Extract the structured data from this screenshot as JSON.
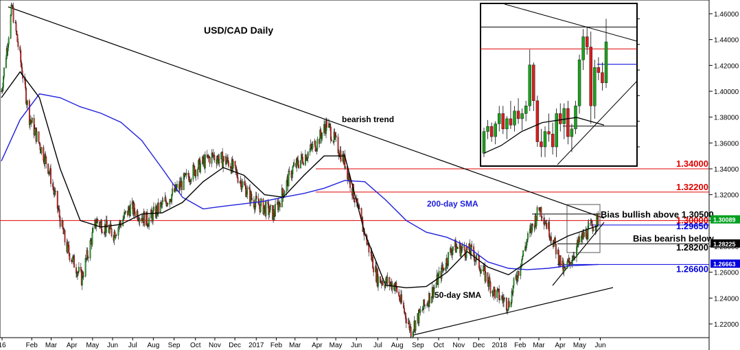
{
  "chart_data": {
    "type": "candlestick",
    "title": "USD/CAD Daily",
    "ylim": [
      1.2,
      1.47
    ],
    "x_months": [
      "16",
      "Feb",
      "Mar",
      "Apr",
      "May",
      "Jun",
      "Jul",
      "Aug",
      "Sep",
      "Oct",
      "Nov",
      "Dec",
      "2017",
      "Feb",
      "Mar",
      "Apr",
      "May",
      "Jun",
      "Jul",
      "Aug",
      "Sep",
      "Oct",
      "Nov",
      "Dec",
      "2018",
      "Feb",
      "Mar",
      "Apr",
      "May",
      "Jun"
    ],
    "y_ticks": [
      "1.46000",
      "1.44000",
      "1.42000",
      "1.40000",
      "1.38000",
      "1.36000",
      "1.34000",
      "1.32000",
      "1.30000",
      "1.28000",
      "1.26000",
      "1.24000",
      "1.22000"
    ],
    "horizontal_levels": [
      {
        "value": 1.34,
        "label": "1.34000",
        "color": "#e00000"
      },
      {
        "value": 1.322,
        "label": "1.32200",
        "color": "#e00000"
      },
      {
        "value": 1.305,
        "label": "Bias bullish above 1.30500",
        "color": "#000000"
      },
      {
        "value": 1.3,
        "label": "1.30000",
        "color": "#e00000"
      },
      {
        "value": 1.2965,
        "label": "1.29650",
        "color": "#0000dd"
      },
      {
        "value": 1.282,
        "label": "1.28200",
        "color": "#000000"
      },
      {
        "value": 1.266,
        "label": "1.26600",
        "color": "#0000dd"
      }
    ],
    "bias_bearish_label": "Bias bearish below",
    "price_tags": [
      {
        "value": 1.30089,
        "label": "1.30089",
        "bg": "#00a020"
      },
      {
        "value": 1.28225,
        "label": "1.28225",
        "bg": "#000000"
      },
      {
        "value": 1.26663,
        "label": "1.26663",
        "bg": "#0000dd"
      }
    ],
    "annotations": [
      "bearish trend",
      "200-day SMA",
      "50-day SMA"
    ],
    "series": [
      {
        "name": "200-day SMA",
        "color": "#2020dd",
        "x": [
          "2016-01-04",
          "2016-02-01",
          "2016-03-01",
          "2016-04-01",
          "2016-05-01",
          "2016-06-01",
          "2016-07-01",
          "2016-08-01",
          "2016-09-01",
          "2016-10-01",
          "2016-11-01",
          "2016-12-01",
          "2017-01-01",
          "2017-02-01",
          "2017-03-01",
          "2017-04-01",
          "2017-05-01",
          "2017-06-01",
          "2017-07-01",
          "2017-08-01",
          "2017-09-01",
          "2017-10-01",
          "2017-11-01",
          "2017-12-01",
          "2018-01-01",
          "2018-02-01",
          "2018-03-01",
          "2018-04-01",
          "2018-05-01",
          "2018-06-15"
        ],
        "y": [
          1.346,
          1.378,
          1.398,
          1.395,
          1.388,
          1.383,
          1.376,
          1.362,
          1.34,
          1.318,
          1.309,
          1.311,
          1.313,
          1.315,
          1.318,
          1.321,
          1.325,
          1.331,
          1.33,
          1.316,
          1.3,
          1.291,
          1.287,
          1.28,
          1.268,
          1.263,
          1.262,
          1.263,
          1.265,
          1.266
        ]
      },
      {
        "name": "50-day SMA",
        "color": "#000000",
        "x": [
          "2016-01-04",
          "2016-02-01",
          "2016-03-01",
          "2016-04-01",
          "2016-05-01",
          "2016-06-01",
          "2016-07-01",
          "2016-08-01",
          "2016-09-01",
          "2016-10-01",
          "2016-11-01",
          "2016-12-01",
          "2017-01-01",
          "2017-02-01",
          "2017-03-01",
          "2017-04-01",
          "2017-05-01",
          "2017-06-01",
          "2017-07-01",
          "2017-08-01",
          "2017-09-01",
          "2017-10-01",
          "2017-11-01",
          "2017-12-01",
          "2018-01-01",
          "2018-02-01",
          "2018-03-01",
          "2018-04-01",
          "2018-05-01",
          "2018-06-15"
        ],
        "y": [
          1.395,
          1.415,
          1.395,
          1.34,
          1.3,
          1.295,
          1.297,
          1.305,
          1.306,
          1.314,
          1.33,
          1.341,
          1.335,
          1.32,
          1.318,
          1.335,
          1.35,
          1.35,
          1.29,
          1.25,
          1.248,
          1.249,
          1.26,
          1.276,
          1.264,
          1.258,
          1.268,
          1.28,
          1.288,
          1.296
        ]
      },
      {
        "name": "Price",
        "color": "#000000",
        "x": [
          "2016-01-04",
          "2016-01-20",
          "2016-02-15",
          "2016-03-15",
          "2016-04-10",
          "2016-05-03",
          "2016-05-25",
          "2016-06-20",
          "2016-07-15",
          "2016-08-10",
          "2016-09-15",
          "2016-10-20",
          "2016-11-15",
          "2016-12-10",
          "2017-01-15",
          "2017-02-15",
          "2017-03-15",
          "2017-04-20",
          "2017-05-05",
          "2017-06-01",
          "2017-06-25",
          "2017-07-20",
          "2017-08-15",
          "2017-09-08",
          "2017-10-10",
          "2017-11-10",
          "2017-12-10",
          "2018-01-10",
          "2018-02-01",
          "2018-03-01",
          "2018-03-20",
          "2018-04-05",
          "2018-04-25",
          "2018-05-20",
          "2018-06-15"
        ],
        "y": [
          1.4,
          1.465,
          1.38,
          1.34,
          1.28,
          1.255,
          1.3,
          1.29,
          1.31,
          1.3,
          1.32,
          1.34,
          1.35,
          1.345,
          1.315,
          1.305,
          1.34,
          1.36,
          1.375,
          1.345,
          1.3,
          1.255,
          1.25,
          1.215,
          1.245,
          1.28,
          1.275,
          1.245,
          1.235,
          1.285,
          1.31,
          1.29,
          1.26,
          1.285,
          1.301
        ]
      }
    ]
  },
  "inset": {
    "y_ticks": [
      "1.46000",
      "1.44000",
      "1.42000",
      "1.40000",
      "1.38000",
      "1.36000"
    ],
    "ylim": [
      1.345,
      1.472
    ],
    "candles": [
      {
        "o": 1.355,
        "h": 1.375,
        "l": 1.352,
        "c": 1.372
      },
      {
        "o": 1.372,
        "h": 1.381,
        "l": 1.366,
        "c": 1.376
      },
      {
        "o": 1.376,
        "h": 1.379,
        "l": 1.364,
        "c": 1.368
      },
      {
        "o": 1.368,
        "h": 1.38,
        "l": 1.362,
        "c": 1.378
      },
      {
        "o": 1.378,
        "h": 1.392,
        "l": 1.372,
        "c": 1.386
      },
      {
        "o": 1.386,
        "h": 1.392,
        "l": 1.37,
        "c": 1.374
      },
      {
        "o": 1.374,
        "h": 1.384,
        "l": 1.366,
        "c": 1.382
      },
      {
        "o": 1.382,
        "h": 1.396,
        "l": 1.374,
        "c": 1.377
      },
      {
        "o": 1.377,
        "h": 1.392,
        "l": 1.372,
        "c": 1.388
      },
      {
        "o": 1.388,
        "h": 1.398,
        "l": 1.378,
        "c": 1.382
      },
      {
        "o": 1.382,
        "h": 1.39,
        "l": 1.373,
        "c": 1.386
      },
      {
        "o": 1.386,
        "h": 1.396,
        "l": 1.38,
        "c": 1.392
      },
      {
        "o": 1.392,
        "h": 1.436,
        "l": 1.388,
        "c": 1.424
      },
      {
        "o": 1.424,
        "h": 1.426,
        "l": 1.388,
        "c": 1.396
      },
      {
        "o": 1.396,
        "h": 1.4,
        "l": 1.36,
        "c": 1.364
      },
      {
        "o": 1.364,
        "h": 1.374,
        "l": 1.352,
        "c": 1.36
      },
      {
        "o": 1.36,
        "h": 1.376,
        "l": 1.352,
        "c": 1.372
      },
      {
        "o": 1.372,
        "h": 1.386,
        "l": 1.364,
        "c": 1.37
      },
      {
        "o": 1.37,
        "h": 1.379,
        "l": 1.354,
        "c": 1.36
      },
      {
        "o": 1.36,
        "h": 1.39,
        "l": 1.352,
        "c": 1.386
      },
      {
        "o": 1.386,
        "h": 1.394,
        "l": 1.372,
        "c": 1.378
      },
      {
        "o": 1.378,
        "h": 1.394,
        "l": 1.366,
        "c": 1.39
      },
      {
        "o": 1.39,
        "h": 1.396,
        "l": 1.362,
        "c": 1.368
      },
      {
        "o": 1.368,
        "h": 1.378,
        "l": 1.356,
        "c": 1.374
      },
      {
        "o": 1.374,
        "h": 1.396,
        "l": 1.37,
        "c": 1.392
      },
      {
        "o": 1.392,
        "h": 1.432,
        "l": 1.386,
        "c": 1.428
      },
      {
        "o": 1.428,
        "h": 1.452,
        "l": 1.42,
        "c": 1.446
      },
      {
        "o": 1.446,
        "h": 1.454,
        "l": 1.432,
        "c": 1.438
      },
      {
        "o": 1.438,
        "h": 1.45,
        "l": 1.378,
        "c": 1.392
      },
      {
        "o": 1.392,
        "h": 1.428,
        "l": 1.382,
        "c": 1.422
      },
      {
        "o": 1.422,
        "h": 1.43,
        "l": 1.412,
        "c": 1.418
      },
      {
        "o": 1.418,
        "h": 1.426,
        "l": 1.404,
        "c": 1.41
      },
      {
        "o": 1.41,
        "h": 1.46,
        "l": 1.406,
        "c": 1.442
      }
    ]
  }
}
